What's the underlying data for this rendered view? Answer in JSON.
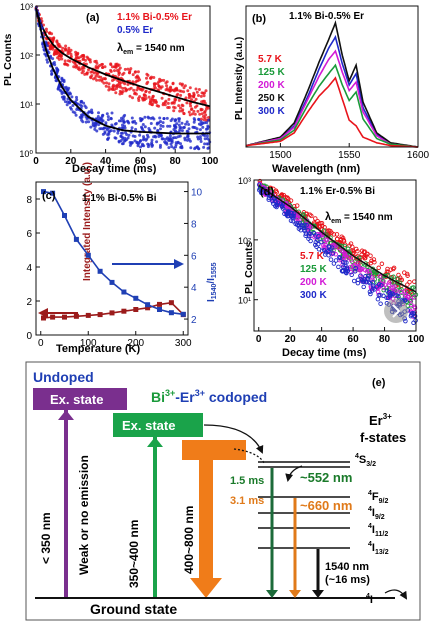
{
  "panels": {
    "a": {
      "label": "(a)",
      "legend": [
        {
          "text": "1.1% Bi-0.5% Er",
          "color": "#e8141b"
        },
        {
          "text": "0.5% Er",
          "color": "#1f29c9"
        }
      ],
      "lambda_prefix": "λ",
      "lambda_sub": "em",
      "lambda_value": " = 1540 nm"
    },
    "b": {
      "label": "(b)",
      "legend_title": "1.1% Bi-0.5% Er"
    },
    "c": {
      "label": "(c)",
      "legend_title": "1.1% Bi-0.5% Bi",
      "ylabel_right_prefix": "I",
      "ylabel_right_sub1": "1540",
      "ylabel_right_mid": "/I",
      "ylabel_right_sub2": "1555"
    },
    "d": {
      "label": "(d)",
      "legend_title": "1.1% Er-0.5% Bi",
      "lambda_prefix": "λ",
      "lambda_sub": "em",
      "lambda_value": " = 1540 nm"
    },
    "e": {
      "label": "(e)",
      "undoped": "Undoped",
      "codoped_prefix": "Bi",
      "codoped_sup1": "3+",
      "codoped_mid": "-Er",
      "codoped_sup2": "3+",
      "codoped_suffix": " codoped",
      "ex_state_1": "Ex. state",
      "ex_state_2": "Ex. state",
      "er_label": "Er",
      "er_sup": "3+",
      "fstates_label": "f-states",
      "arrow_lt350": "< 350 nm",
      "weak_label": "Weak or no emission",
      "arrow_350_400": "350~400 nm",
      "arrow_400_800": "400~800 nm",
      "time_15": "1.5 ms",
      "time_31": "3.1 ms",
      "em_552": "~552 nm",
      "em_660": "~660 nm",
      "em_1540": "1540 nm",
      "em_1540_time": "(~16 ms)",
      "ground_state": "Ground state",
      "levels": [
        {
          "sup": "4",
          "name": "S",
          "sub": "3/2"
        },
        {
          "sup": "4",
          "name": "F",
          "sub": "9/2"
        },
        {
          "sup": "4",
          "name": "I",
          "sub": "9/2"
        },
        {
          "sup": "4",
          "name": "I",
          "sub": "11/2"
        },
        {
          "sup": "4",
          "name": "I",
          "sub": "13/2"
        },
        {
          "sup": "4",
          "name": "I",
          "sub": ""
        }
      ]
    }
  },
  "chart_data": [
    {
      "panel": "a",
      "type": "scatter",
      "xlabel": "Decay time (ms)",
      "ylabel": "PL Counts",
      "xlim": [
        0,
        100
      ],
      "ylim": [
        1,
        1000
      ],
      "yscale": "log",
      "xticks": [
        0,
        20,
        40,
        60,
        80,
        100
      ],
      "yticks": [
        {
          "v": 1,
          "label": "10⁰"
        },
        {
          "v": 10,
          "label": "10¹"
        },
        {
          "v": 100,
          "label": "10²"
        },
        {
          "v": 1000,
          "label": "10³"
        }
      ],
      "series": [
        {
          "name": "1.1% Bi-0.5% Er",
          "color": "#e8141b",
          "fit_color": "#000000",
          "x": [
            0,
            1,
            3,
            6,
            10,
            15,
            20,
            30,
            40,
            50,
            60,
            70,
            80,
            90,
            100
          ],
          "y": [
            900,
            700,
            420,
            250,
            160,
            110,
            85,
            56,
            40,
            30,
            23,
            18,
            14,
            11,
            9
          ]
        },
        {
          "name": "0.5% Er",
          "color": "#1f29c9",
          "fit_color": "#000000",
          "x": [
            0,
            1,
            3,
            6,
            10,
            15,
            20,
            30,
            40,
            50,
            60,
            70,
            80,
            90,
            100
          ],
          "y": [
            900,
            650,
            300,
            120,
            50,
            22,
            12,
            5.5,
            3.6,
            2.9,
            2.7,
            2.6,
            2.5,
            2.5,
            2.5
          ]
        }
      ]
    },
    {
      "panel": "b",
      "type": "line",
      "xlabel": "Wavelength (nm)",
      "ylabel": "PL Intensity (a.u.)",
      "xlim": [
        1475,
        1600
      ],
      "xticks": [
        1500,
        1550,
        1600
      ],
      "ylim": [
        0,
        1
      ],
      "series": [
        {
          "name": "5.7 K",
          "color": "#e8141b",
          "x": [
            1475,
            1500,
            1510,
            1520,
            1528,
            1535,
            1540,
            1545,
            1550,
            1555,
            1560,
            1570,
            1580,
            1600
          ],
          "y": [
            0.01,
            0.04,
            0.1,
            0.25,
            0.36,
            0.43,
            0.49,
            0.34,
            0.19,
            0.15,
            0.07,
            0.03,
            0.01,
            0.0
          ]
        },
        {
          "name": "125 K",
          "color": "#1a9a3a",
          "x": [
            1475,
            1500,
            1510,
            1520,
            1528,
            1535,
            1540,
            1545,
            1550,
            1555,
            1560,
            1570,
            1580,
            1600
          ],
          "y": [
            0.01,
            0.05,
            0.12,
            0.3,
            0.43,
            0.52,
            0.58,
            0.44,
            0.33,
            0.39,
            0.2,
            0.06,
            0.02,
            0.0
          ]
        },
        {
          "name": "200 K",
          "color": "#d21ad6",
          "x": [
            1475,
            1500,
            1510,
            1520,
            1528,
            1535,
            1540,
            1545,
            1550,
            1555,
            1560,
            1570,
            1580,
            1600
          ],
          "y": [
            0.01,
            0.06,
            0.14,
            0.34,
            0.5,
            0.62,
            0.68,
            0.53,
            0.4,
            0.46,
            0.25,
            0.08,
            0.02,
            0.0
          ]
        },
        {
          "name": "250 K",
          "color": "#111111",
          "x": [
            1475,
            1500,
            1510,
            1520,
            1528,
            1535,
            1540,
            1545,
            1550,
            1555,
            1560,
            1570,
            1580,
            1600
          ],
          "y": [
            0.01,
            0.07,
            0.17,
            0.4,
            0.6,
            0.76,
            0.88,
            0.65,
            0.47,
            0.58,
            0.32,
            0.1,
            0.03,
            0.0
          ]
        },
        {
          "name": "300 K",
          "color": "#1f29c9",
          "x": [
            1475,
            1500,
            1510,
            1520,
            1528,
            1535,
            1540,
            1545,
            1550,
            1555,
            1560,
            1570,
            1580,
            1600
          ],
          "y": [
            0.01,
            0.06,
            0.15,
            0.36,
            0.55,
            0.7,
            0.78,
            0.59,
            0.44,
            0.52,
            0.28,
            0.09,
            0.02,
            0.0
          ]
        }
      ]
    },
    {
      "panel": "c",
      "type": "line",
      "xlabel": "Temperature (K)",
      "ylabel": "Integrated Intensity (a.u.)",
      "ylabel_right": "I1540/I1555",
      "xlim": [
        -10,
        310
      ],
      "xticks": [
        0,
        100,
        200,
        300
      ],
      "ylim": [
        0,
        9
      ],
      "yticks": [
        0,
        2,
        4,
        6,
        8
      ],
      "ylim_right": [
        1,
        10.6
      ],
      "yticks_right": [
        2,
        4,
        6,
        8,
        10
      ],
      "series": [
        {
          "name": "Integrated Intensity",
          "color": "#9b1b1b",
          "axis": "left",
          "x": [
            5.7,
            25,
            50,
            75,
            100,
            125,
            150,
            175,
            200,
            225,
            250,
            275,
            300
          ],
          "y": [
            1.0,
            1.05,
            1.05,
            1.1,
            1.15,
            1.2,
            1.3,
            1.4,
            1.5,
            1.6,
            1.8,
            1.9,
            1.2
          ]
        },
        {
          "name": "I1540/I1555",
          "color": "#1f3fb4",
          "axis": "right",
          "x": [
            5.7,
            25,
            50,
            75,
            100,
            125,
            150,
            175,
            200,
            225,
            250,
            275,
            300
          ],
          "y": [
            10.0,
            9.9,
            8.5,
            7.0,
            6.0,
            5.0,
            4.3,
            3.7,
            3.3,
            2.9,
            2.6,
            2.4,
            2.3
          ]
        }
      ]
    },
    {
      "panel": "d",
      "type": "scatter",
      "xlabel": "Decay time (ms)",
      "ylabel": "PL Counts",
      "xlim": [
        -3,
        100
      ],
      "xticks": [
        0,
        20,
        40,
        60,
        80,
        100
      ],
      "ylim": [
        3,
        1000
      ],
      "yscale": "log",
      "yticks": [
        {
          "v": 10,
          "label": "10¹"
        },
        {
          "v": 100,
          "label": "10²"
        },
        {
          "v": 1000,
          "label": "10³"
        }
      ],
      "series": [
        {
          "name": "5.7 K",
          "color": "#e8141b",
          "x": [
            0,
            20,
            40,
            60,
            80,
            100
          ],
          "y": [
            900,
            400,
            150,
            60,
            28,
            15
          ]
        },
        {
          "name": "125 K",
          "color": "#1a9a3a",
          "x": [
            0,
            20,
            40,
            60,
            80,
            100
          ],
          "y": [
            850,
            330,
            120,
            45,
            20,
            10
          ]
        },
        {
          "name": "200 K",
          "color": "#d21ad6",
          "x": [
            0,
            20,
            40,
            60,
            80,
            100
          ],
          "y": [
            800,
            300,
            100,
            35,
            15,
            7
          ]
        },
        {
          "name": "300 K",
          "color": "#1f29c9",
          "x": [
            0,
            20,
            40,
            60,
            80,
            100
          ],
          "y": [
            750,
            260,
            80,
            28,
            11,
            5
          ]
        }
      ]
    }
  ]
}
